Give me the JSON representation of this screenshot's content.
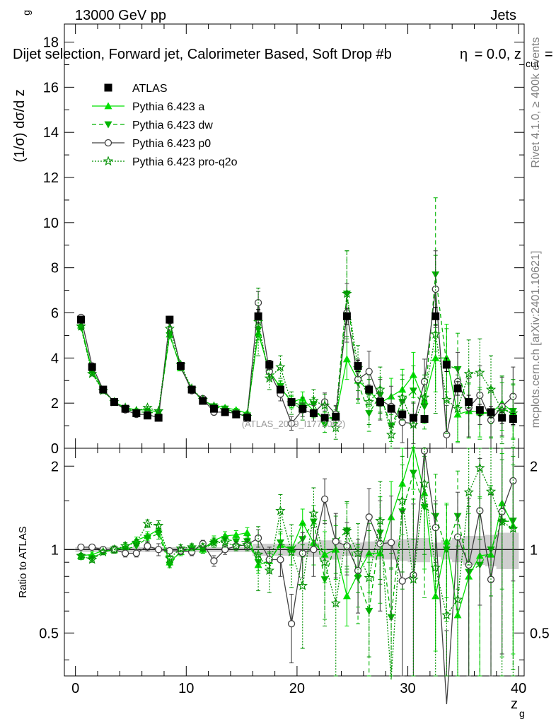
{
  "header": {
    "left": "13000 GeV pp",
    "right": "Jets",
    "title_main": "Dijet selection, Forward jet, Calorimeter Based, Soft Drop #b",
    "title_eta": "= 0.0, z",
    "title_cut": "cut",
    "title_tail": "=",
    "title_eta_prefix": "η"
  },
  "side_labels": {
    "rivet": "Rivet 4.1.0, ≥ 400k events",
    "mcplots": "mcplots.cern.ch [arXiv:2401.10621]"
  },
  "watermark": "(ATLAS_2019_I1772062)",
  "chart_data": [
    {
      "panel": "main",
      "type": "line",
      "ylabel": "(1/σ) dσ/d z",
      "ylabel_sub": "g",
      "xlabel": "z",
      "xlabel_sub": "g",
      "xlim": [
        -1,
        40.5
      ],
      "ylim": [
        0,
        18.8
      ],
      "xticks": [
        0,
        10,
        20,
        30,
        40
      ],
      "yticks": [
        0,
        2,
        4,
        6,
        8,
        10,
        12,
        14,
        16,
        18
      ],
      "legend_position": "top-left",
      "x": [
        0.5,
        1.5,
        2.5,
        3.5,
        4.5,
        5.5,
        6.5,
        7.5,
        8.5,
        9.5,
        10.5,
        11.5,
        12.5,
        13.5,
        14.5,
        15.5,
        16.5,
        17.5,
        18.5,
        19.5,
        20.5,
        21.5,
        22.5,
        23.5,
        24.5,
        25.5,
        26.5,
        27.5,
        28.5,
        29.5,
        30.5,
        31.5,
        32.5,
        33.5,
        34.5,
        35.5,
        36.5,
        37.5,
        38.5,
        39.5
      ],
      "series": [
        {
          "name": "ATLAS",
          "color": "#000000",
          "marker": "square",
          "line": "none",
          "values": [
            5.7,
            3.6,
            2.6,
            2.05,
            1.75,
            1.55,
            1.45,
            1.35,
            5.7,
            3.65,
            2.6,
            2.1,
            1.75,
            1.6,
            1.5,
            1.35,
            5.85,
            3.7,
            2.6,
            2.05,
            1.75,
            1.55,
            1.35,
            1.4,
            5.85,
            3.65,
            2.6,
            2.05,
            1.75,
            1.5,
            1.35,
            1.3,
            5.85,
            3.7,
            2.65,
            2.05,
            1.7,
            1.6,
            1.35,
            1.3
          ],
          "errors": [
            0.15,
            0.1,
            0.08,
            0.06,
            0.05,
            0.05,
            0.05,
            0.05,
            0.15,
            0.1,
            0.08,
            0.07,
            0.06,
            0.06,
            0.06,
            0.05,
            0.3,
            0.2,
            0.15,
            0.12,
            0.12,
            0.12,
            0.12,
            0.12,
            0.35,
            0.25,
            0.2,
            0.18,
            0.15,
            0.15,
            0.15,
            0.15,
            0.4,
            0.3,
            0.3,
            0.3,
            0.25,
            0.25,
            0.25,
            0.25
          ]
        },
        {
          "name": "Pythia 6.423 a",
          "color": "#00e000",
          "marker": "triangle-up",
          "line": "solid",
          "values": [
            5.45,
            3.45,
            2.6,
            2.05,
            1.8,
            1.7,
            1.7,
            1.6,
            5.05,
            3.55,
            2.65,
            2.1,
            1.9,
            1.8,
            1.7,
            1.55,
            5.1,
            3.4,
            2.7,
            2.05,
            2.2,
            1.65,
            1.3,
            1.4,
            3.95,
            3.0,
            2.55,
            2.0,
            2.3,
            2.6,
            3.25,
            2.1,
            4.0,
            4.0,
            1.5,
            1.65,
            1.6,
            1.55,
            2.0,
            1.6
          ],
          "errors": [
            0.1,
            0.08,
            0.07,
            0.06,
            0.05,
            0.05,
            0.06,
            0.06,
            0.1,
            0.08,
            0.07,
            0.07,
            0.07,
            0.07,
            0.07,
            0.07,
            0.3,
            0.25,
            0.25,
            0.25,
            0.3,
            0.3,
            0.3,
            0.3,
            0.9,
            0.8,
            0.7,
            0.7,
            0.8,
            0.9,
            1.0,
            1.0,
            1.5,
            1.5,
            1.2,
            1.2,
            1.1,
            1.1,
            1.2,
            1.2
          ]
        },
        {
          "name": "Pythia 6.423 dw",
          "color": "#00b400",
          "marker": "triangle-down",
          "line": "dashed",
          "values": [
            5.35,
            3.35,
            2.55,
            2.05,
            1.75,
            1.6,
            1.6,
            1.55,
            5.0,
            3.6,
            2.6,
            2.1,
            1.85,
            1.75,
            1.6,
            1.45,
            5.25,
            3.35,
            2.75,
            2.05,
            1.9,
            1.95,
            1.05,
            1.5,
            6.85,
            2.9,
            1.55,
            2.35,
            1.0,
            2.05,
            2.55,
            1.85,
            7.7,
            3.7,
            3.5,
            1.7,
            1.5,
            1.6,
            1.7,
            1.65
          ],
          "errors": [
            0.1,
            0.08,
            0.07,
            0.06,
            0.05,
            0.05,
            0.06,
            0.06,
            0.1,
            0.08,
            0.07,
            0.07,
            0.07,
            0.07,
            0.07,
            0.07,
            0.3,
            0.25,
            0.25,
            0.3,
            0.3,
            0.3,
            0.35,
            0.35,
            1.9,
            0.9,
            0.8,
            0.8,
            0.7,
            1.0,
            1.1,
            1.0,
            3.4,
            1.6,
            1.6,
            1.2,
            1.1,
            1.1,
            1.2,
            1.2
          ]
        },
        {
          "name": "Pythia 6.423 p0",
          "color": "#404040",
          "marker": "circle-open",
          "line": "solid",
          "values": [
            5.8,
            3.65,
            2.6,
            2.05,
            1.7,
            1.5,
            1.5,
            1.35,
            5.65,
            3.6,
            2.55,
            2.2,
            1.6,
            1.6,
            1.55,
            1.4,
            6.45,
            3.4,
            2.4,
            1.1,
            1.7,
            1.55,
            2.05,
            1.5,
            6.0,
            3.05,
            3.4,
            2.15,
            1.85,
            1.15,
            1.1,
            2.95,
            7.05,
            0.6,
            2.95,
            1.8,
            2.35,
            1.25,
            1.85,
            2.3
          ],
          "errors": [
            0.1,
            0.08,
            0.07,
            0.06,
            0.05,
            0.05,
            0.06,
            0.06,
            0.1,
            0.08,
            0.07,
            0.07,
            0.07,
            0.07,
            0.07,
            0.07,
            0.5,
            0.35,
            0.3,
            0.3,
            0.3,
            0.35,
            0.4,
            0.4,
            1.3,
            0.9,
            0.9,
            0.9,
            0.9,
            0.9,
            0.9,
            1.0,
            1.7,
            1.3,
            1.3,
            1.3,
            1.3,
            1.3,
            1.3,
            1.3
          ]
        },
        {
          "name": "Pythia 6.423 pro-q2o",
          "color": "#009000",
          "marker": "star-open",
          "line": "dotted",
          "values": [
            5.4,
            3.3,
            2.55,
            2.05,
            1.8,
            1.65,
            1.8,
            1.65,
            5.3,
            3.7,
            2.65,
            2.15,
            1.85,
            1.7,
            1.55,
            1.4,
            5.6,
            3.1,
            3.6,
            2.0,
            1.75,
            2.1,
            1.9,
            0.9,
            6.85,
            3.55,
            2.05,
            2.6,
            0.6,
            2.25,
            1.05,
            2.25,
            5.05,
            2.15,
            1.75,
            3.3,
            3.35,
            2.6,
            1.7,
            1.55
          ],
          "errors": [
            0.1,
            0.08,
            0.07,
            0.06,
            0.05,
            0.05,
            0.06,
            0.06,
            0.1,
            0.08,
            0.07,
            0.07,
            0.07,
            0.07,
            0.07,
            0.07,
            1.5,
            0.5,
            0.5,
            0.5,
            0.5,
            0.5,
            0.5,
            0.5,
            1.9,
            1.0,
            1.0,
            1.0,
            0.9,
            1.0,
            1.0,
            1.0,
            3.5,
            1.5,
            1.5,
            1.5,
            1.5,
            1.5,
            1.5,
            1.5
          ]
        }
      ]
    },
    {
      "panel": "ratio",
      "type": "line",
      "ylabel": "Ratio to ATLAS",
      "xlim": [
        -1,
        40.5
      ],
      "ylim": [
        0.35,
        2.32
      ],
      "yticks": [
        0.5,
        1,
        2
      ],
      "ytick_labels": [
        "0.5",
        "1",
        "2"
      ],
      "reference_line": 1,
      "band_errors": [
        0.02,
        0.02,
        0.02,
        0.02,
        0.02,
        0.02,
        0.02,
        0.02,
        0.02,
        0.02,
        0.02,
        0.02,
        0.02,
        0.02,
        0.02,
        0.02,
        0.05,
        0.05,
        0.05,
        0.05,
        0.06,
        0.06,
        0.08,
        0.08,
        0.05,
        0.06,
        0.07,
        0.08,
        0.08,
        0.09,
        0.1,
        0.1,
        0.06,
        0.08,
        0.1,
        0.12,
        0.12,
        0.13,
        0.15,
        0.15
      ],
      "series": [
        {
          "name": "Pythia 6.423 a",
          "values": [
            0.95,
            0.96,
            0.99,
            1.0,
            1.02,
            1.08,
            1.12,
            1.18,
            0.9,
            0.98,
            1.01,
            1.0,
            1.08,
            1.12,
            1.13,
            1.15,
            0.88,
            0.91,
            1.04,
            1.0,
            1.25,
            1.06,
            0.96,
            1.0,
            0.68,
            0.82,
            0.97,
            0.97,
            1.31,
            1.73,
            2.35,
            1.6,
            0.68,
            1.07,
            0.58,
            0.8,
            0.95,
            0.96,
            1.47,
            1.22
          ],
          "errors": [
            0.02,
            0.02,
            0.02,
            0.03,
            0.03,
            0.03,
            0.04,
            0.05,
            0.02,
            0.03,
            0.03,
            0.03,
            0.04,
            0.04,
            0.04,
            0.05,
            0.06,
            0.07,
            0.1,
            0.12,
            0.15,
            0.18,
            0.2,
            0.22,
            0.15,
            0.2,
            0.27,
            0.33,
            0.45,
            0.6,
            0.7,
            0.75,
            0.25,
            0.4,
            0.45,
            0.55,
            0.6,
            0.65,
            0.75,
            0.8
          ]
        },
        {
          "name": "Pythia 6.423 dw",
          "values": [
            0.94,
            0.93,
            0.98,
            1.0,
            1.0,
            1.03,
            1.1,
            1.14,
            0.88,
            0.99,
            1.0,
            1.0,
            1.06,
            1.09,
            1.07,
            1.07,
            0.9,
            0.9,
            1.06,
            1.0,
            1.09,
            1.26,
            0.78,
            1.07,
            1.17,
            0.79,
            0.6,
            1.15,
            0.57,
            1.37,
            1.89,
            1.42,
            1.32,
            1.0,
            1.32,
            0.83,
            0.88,
            1.0,
            1.26,
            1.27
          ],
          "errors": [
            0.02,
            0.02,
            0.02,
            0.03,
            0.03,
            0.03,
            0.04,
            0.05,
            0.02,
            0.03,
            0.03,
            0.03,
            0.04,
            0.04,
            0.04,
            0.05,
            0.06,
            0.07,
            0.1,
            0.12,
            0.15,
            0.18,
            0.22,
            0.25,
            0.3,
            0.25,
            0.3,
            0.4,
            0.4,
            0.65,
            0.8,
            0.75,
            0.55,
            0.45,
            0.6,
            0.6,
            0.65,
            0.7,
            0.85,
            0.9
          ]
        },
        {
          "name": "Pythia 6.423 p0",
          "values": [
            1.02,
            1.02,
            1.0,
            1.0,
            0.97,
            0.97,
            1.03,
            1.0,
            0.99,
            0.99,
            0.98,
            1.05,
            0.91,
            1.0,
            1.03,
            1.04,
            1.1,
            0.92,
            0.92,
            0.54,
            0.97,
            1.0,
            1.52,
            1.07,
            1.03,
            0.84,
            1.31,
            1.05,
            1.06,
            0.77,
            0.81,
            2.27,
            1.2,
            0.16,
            1.11,
            0.88,
            1.38,
            0.78,
            1.37,
            1.77
          ],
          "errors": [
            0.02,
            0.02,
            0.02,
            0.03,
            0.03,
            0.03,
            0.04,
            0.05,
            0.02,
            0.03,
            0.03,
            0.03,
            0.04,
            0.04,
            0.04,
            0.05,
            0.08,
            0.1,
            0.12,
            0.15,
            0.18,
            0.2,
            0.28,
            0.28,
            0.22,
            0.25,
            0.35,
            0.45,
            0.5,
            0.6,
            0.65,
            0.8,
            0.3,
            0.35,
            0.5,
            0.65,
            0.75,
            0.8,
            0.95,
            1.0
          ]
        },
        {
          "name": "Pythia 6.423 pro-q2o",
          "values": [
            0.95,
            0.92,
            0.98,
            1.0,
            1.03,
            1.06,
            1.24,
            1.22,
            0.93,
            1.01,
            1.02,
            1.02,
            1.06,
            1.06,
            1.03,
            1.04,
            0.96,
            0.84,
            1.38,
            0.98,
            0.74,
            1.35,
            0.9,
            0.64,
            1.17,
            0.97,
            0.79,
            1.27,
            0.34,
            1.5,
            0.78,
            1.73,
            0.86,
            0.58,
            0.66,
            1.61,
            1.97,
            1.62,
            1.26,
            1.19
          ],
          "errors": [
            0.02,
            0.02,
            0.02,
            0.03,
            0.03,
            0.03,
            0.04,
            0.05,
            0.02,
            0.03,
            0.03,
            0.03,
            0.04,
            0.04,
            0.04,
            0.05,
            0.25,
            0.14,
            0.2,
            0.25,
            0.3,
            0.32,
            0.37,
            0.36,
            0.32,
            0.27,
            0.38,
            0.49,
            0.51,
            0.67,
            0.74,
            0.77,
            0.6,
            0.4,
            0.57,
            0.73,
            0.88,
            0.94,
            1.1,
            1.15
          ]
        }
      ]
    }
  ]
}
